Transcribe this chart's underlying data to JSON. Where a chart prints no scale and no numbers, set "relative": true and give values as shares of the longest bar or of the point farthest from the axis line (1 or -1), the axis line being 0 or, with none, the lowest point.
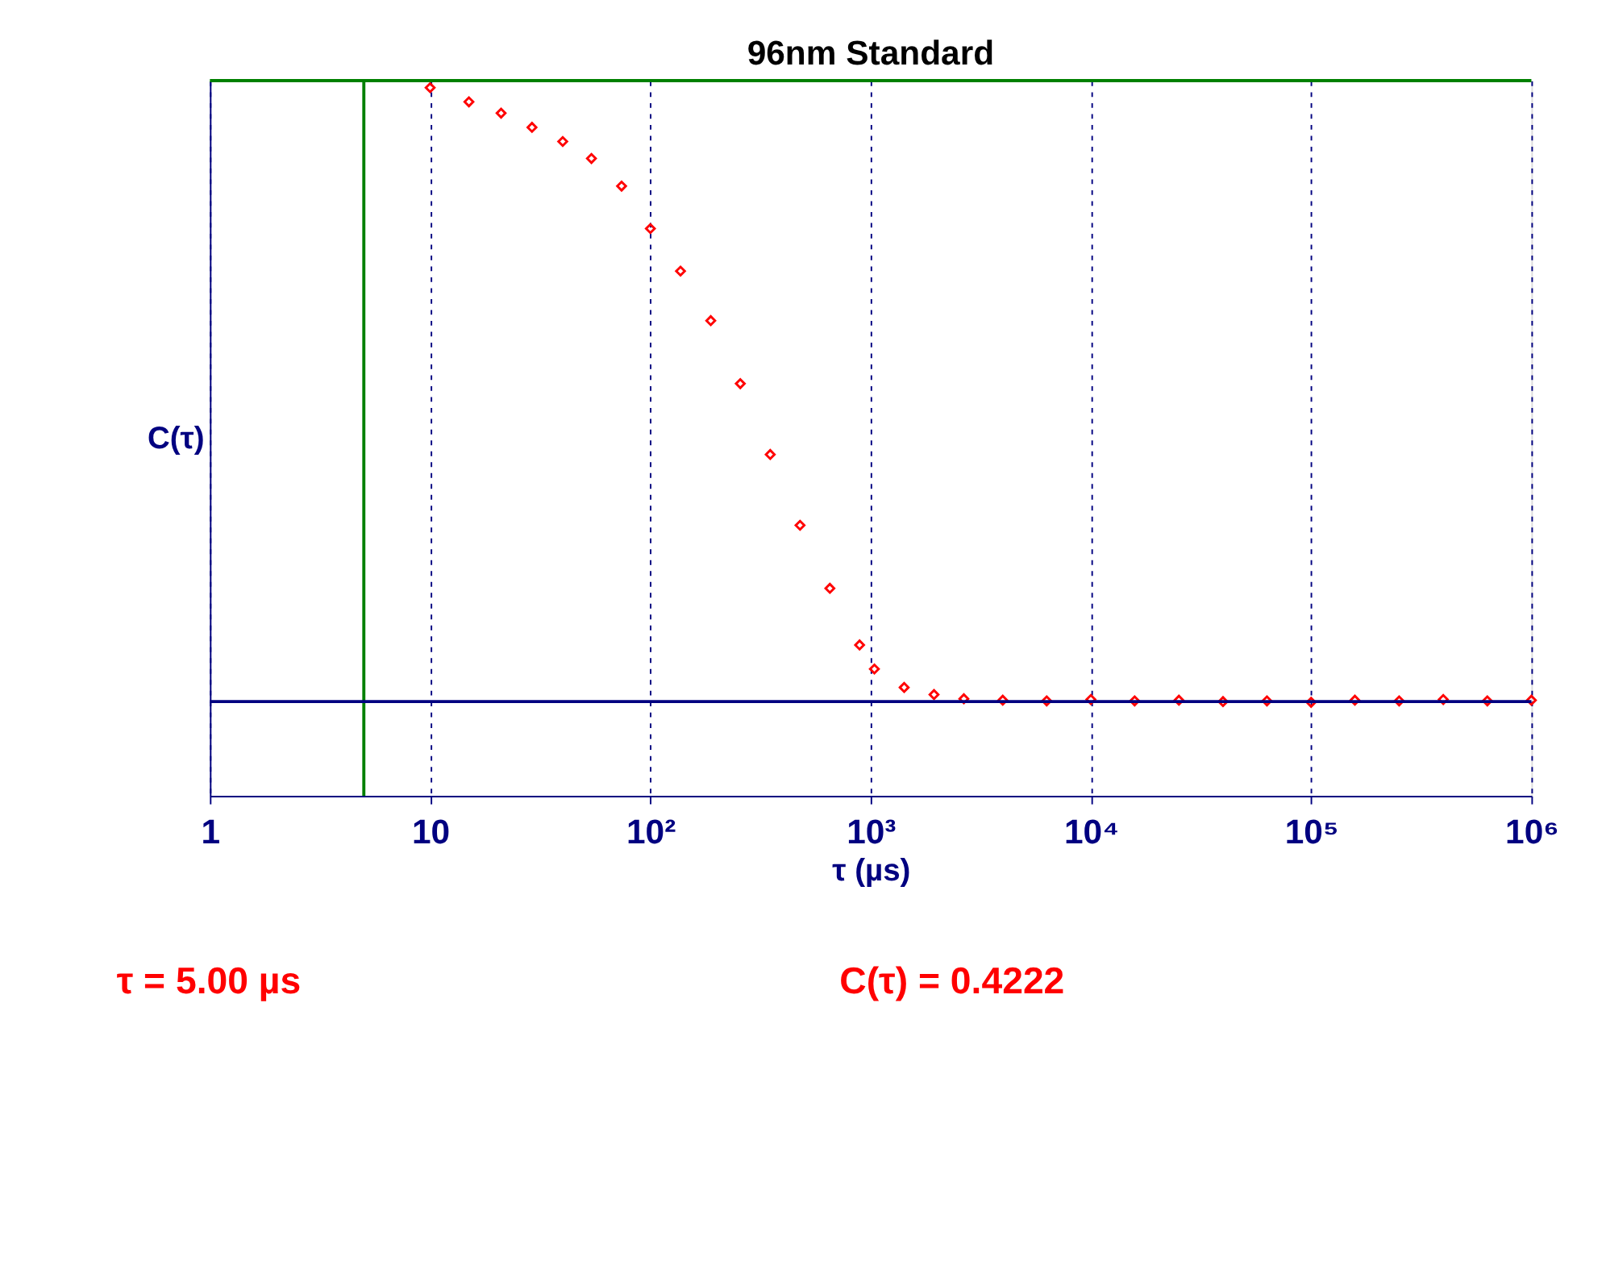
{
  "chart_data": {
    "type": "scatter",
    "title": "96nm Standard",
    "xlabel": "τ (µs)",
    "ylabel": "C(τ)",
    "relative": true,
    "log": "x",
    "grid": "x",
    "marker": "diamond",
    "xlim": [
      1,
      1000000
    ],
    "xticks": [
      1,
      10,
      {
        "value": 100,
        "label": "10²"
      },
      {
        "value": 1000,
        "label": "10³"
      },
      {
        "value": 10000,
        "label": "10⁴"
      },
      {
        "value": 100000,
        "label": "10⁵"
      },
      {
        "value": 1000000,
        "label": "10⁶"
      }
    ],
    "x": [
      10,
      15,
      21,
      29,
      40,
      54,
      74,
      100,
      137,
      188,
      256,
      350,
      478,
      653,
      891,
      1040,
      1420,
      1940,
      2650,
      3980,
      6300,
      10000,
      15800,
      25100,
      39800,
      63000,
      100000,
      158000,
      251000,
      398000,
      631000,
      1000000
    ],
    "series": [
      {
        "color": "#ff0000",
        "values": [
          1.0,
          0.98,
          0.964,
          0.944,
          0.924,
          0.9,
          0.861,
          0.801,
          0.741,
          0.671,
          0.582,
          0.482,
          0.382,
          0.293,
          0.213,
          0.179,
          0.153,
          0.143,
          0.137,
          0.135,
          0.134,
          0.136,
          0.134,
          0.135,
          0.133,
          0.134,
          0.132,
          0.135,
          0.134,
          0.136,
          0.134,
          0.135
        ]
      }
    ],
    "ref_lines": [
      {
        "axis": "x",
        "value": 5,
        "color": "#008000"
      },
      {
        "axis": "y",
        "value": 1.01,
        "color": "#008000"
      },
      {
        "axis": "y",
        "value": 0.133,
        "color": "#000080"
      }
    ],
    "annotations": [
      "τ = 5.00 µs",
      "C(τ) = 0.4222"
    ]
  }
}
